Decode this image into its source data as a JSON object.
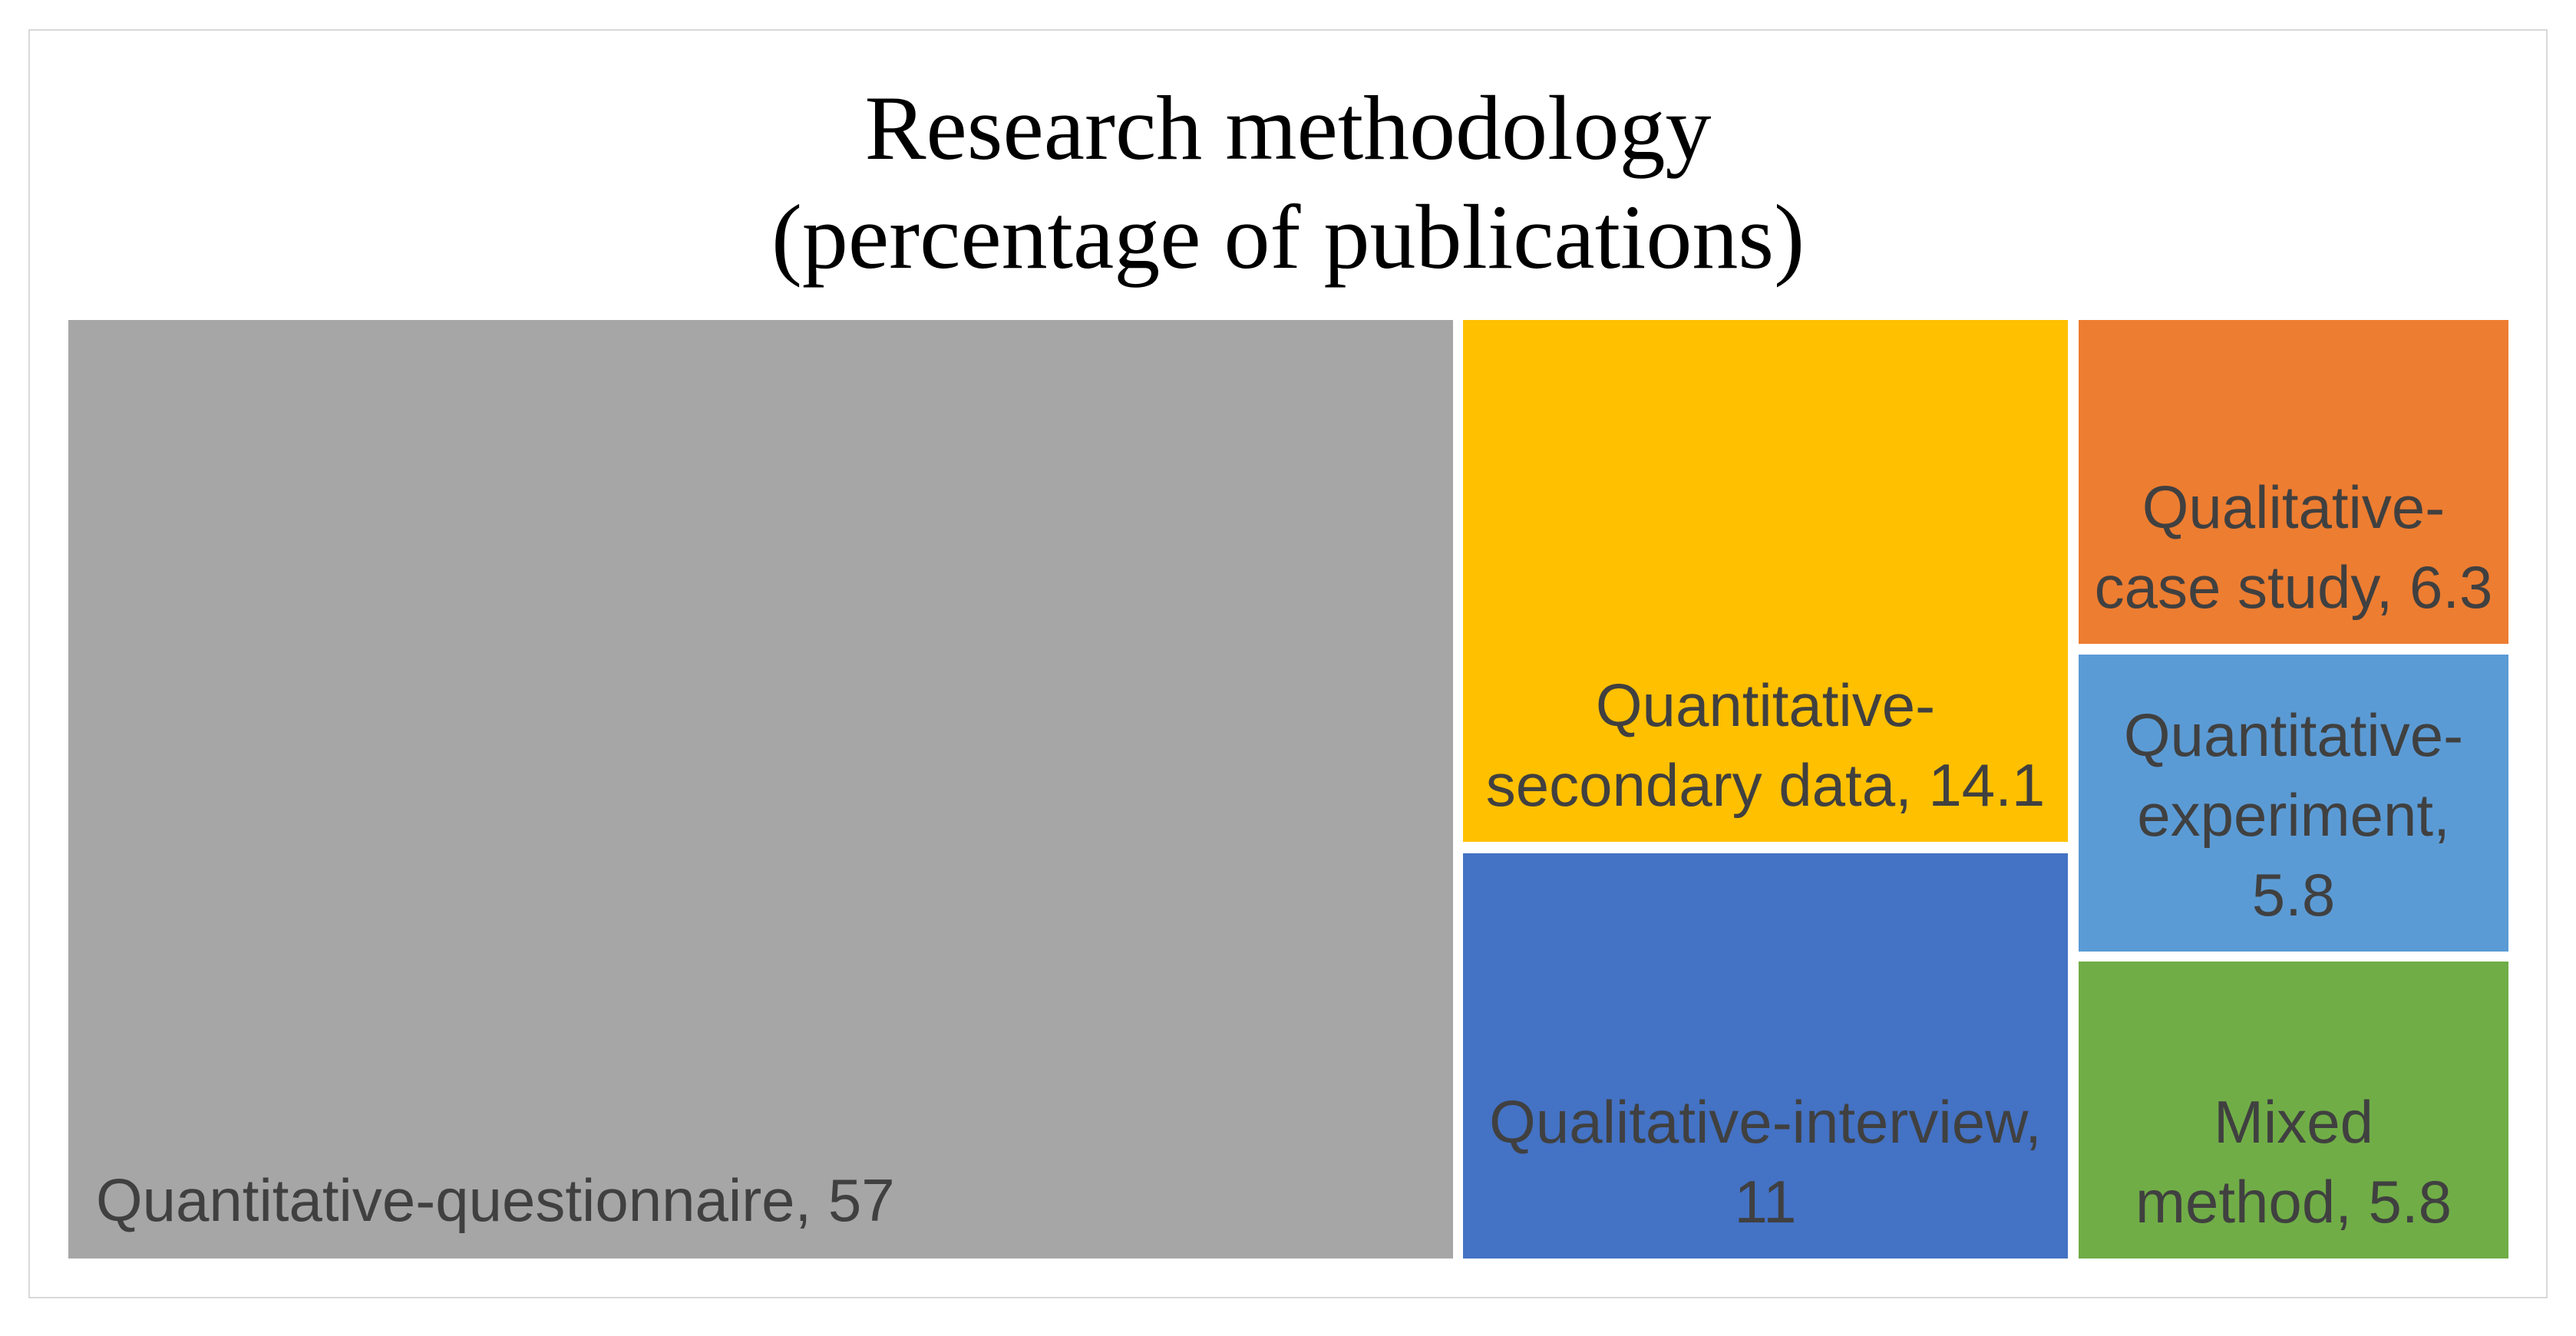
{
  "page": {
    "background_color": "#ffffff",
    "frame_border_color": "#d9d9d9"
  },
  "chart_data": {
    "type": "treemap",
    "title_lines": [
      "Research methodology",
      "(percentage of publications)"
    ],
    "title": "Research methodology (percentage of publications)",
    "title_color": "#000000",
    "label_text_color": "#404040",
    "legend": "none",
    "series": [
      {
        "name": "Quantitative-questionnaire",
        "value": 57,
        "label_lines": [
          "Quantitative-questionnaire, 57"
        ],
        "color": "#a6a6a6"
      },
      {
        "name": "Quantitative-secondary data",
        "value": 14.1,
        "label_lines": [
          "Quantitative-",
          "secondary data, 14.1"
        ],
        "color": "#ffc000"
      },
      {
        "name": "Qualitative-interview",
        "value": 11,
        "label_lines": [
          "Qualitative-interview,",
          "11"
        ],
        "color": "#4472c4"
      },
      {
        "name": "Qualitative-case study",
        "value": 6.3,
        "label_lines": [
          "Qualitative-",
          "case study, 6.3"
        ],
        "color": "#ed7d31"
      },
      {
        "name": "Quantitative-experiment",
        "value": 5.8,
        "label_lines": [
          "Quantitative-",
          "experiment,",
          "5.8"
        ],
        "color": "#5b9bd5"
      },
      {
        "name": "Mixed method",
        "value": 5.8,
        "label_lines": [
          "Mixed",
          "method, 5.8"
        ],
        "color": "#70ad47"
      }
    ]
  }
}
